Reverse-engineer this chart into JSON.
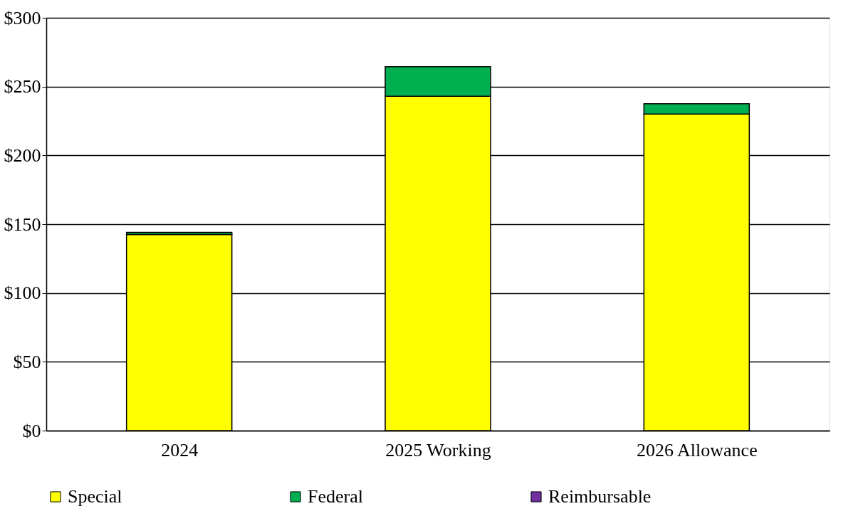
{
  "chart_data": {
    "type": "bar",
    "stacked": true,
    "categories": [
      "2024",
      "2025 Working",
      "2026 Allowance"
    ],
    "series": [
      {
        "name": "Special",
        "color": "#ffff00",
        "values": [
          142.5,
          243,
          230
        ]
      },
      {
        "name": "Federal",
        "color": "#00b050",
        "values": [
          1.5,
          21.5,
          7.5
        ]
      },
      {
        "name": "Reimbursable",
        "color": "#7030a0",
        "values": [
          0,
          0,
          0
        ]
      }
    ],
    "ylim": [
      0,
      300
    ],
    "yticks": [
      {
        "value": 0,
        "label": "$0"
      },
      {
        "value": 50,
        "label": "$50"
      },
      {
        "value": 100,
        "label": "$100"
      },
      {
        "value": 150,
        "label": "$150"
      },
      {
        "value": 200,
        "label": "$200"
      },
      {
        "value": 250,
        "label": "$250"
      },
      {
        "value": 300,
        "label": "$300"
      }
    ],
    "grid": "y",
    "legend": "bottom"
  }
}
